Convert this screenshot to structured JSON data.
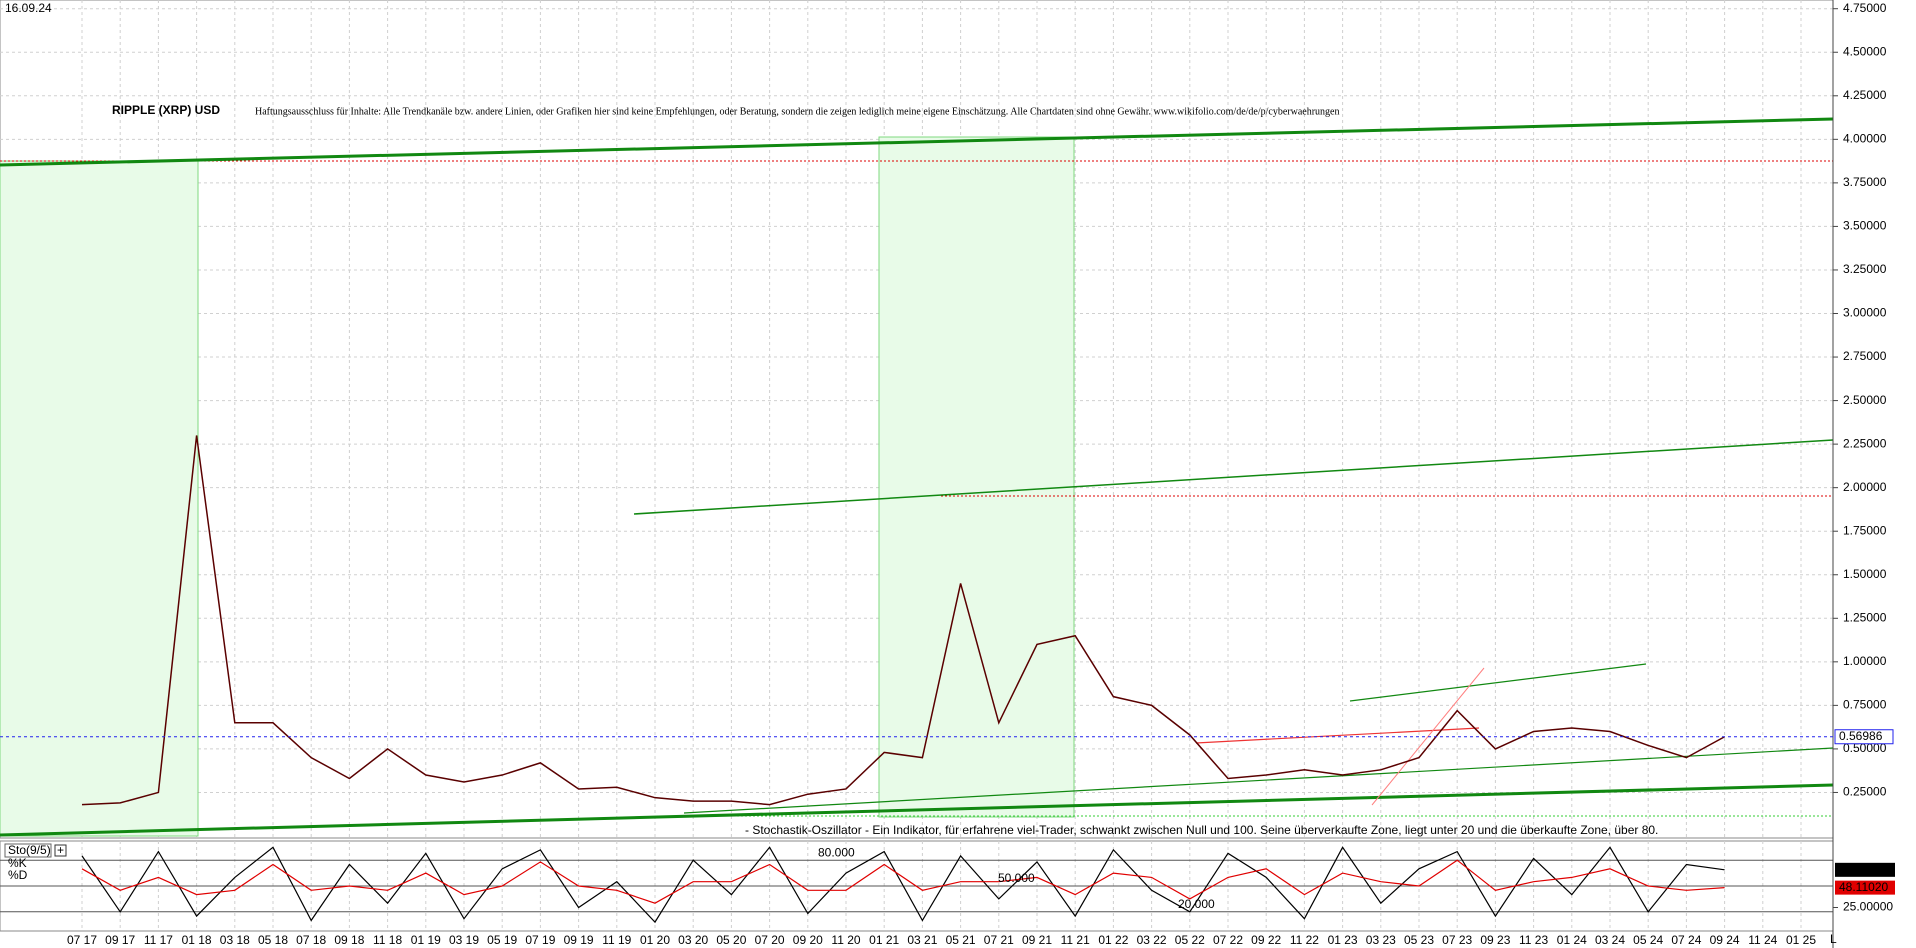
{
  "header": {
    "date": "16.09.24"
  },
  "chart_data": [
    {
      "type": "line",
      "title": "RIPPLE (XRP) USD",
      "subtitle": "Haftungsausschluss für Inhalte: Alle Trendkanäle bzw. andere Linien, oder Grafiken hier sind keine Empfehlungen, oder Beratung, sondern die zeigen lediglich meine eigene Einschätzung. Alle Chartdaten sind ohne Gewähr.  www.wikifolio.com/de/de/p/cyberwaehrungen",
      "annotation": "- Stochastik-Oszillator - Ein Indikator, für erfahrene viel-Trader, schwankt zwischen Null und 100. Seine überverkaufte Zone, liegt unter 20 und die überkaufte Zone, über 80.",
      "xlabel": "L",
      "categories": [
        "07 17",
        "09 17",
        "11 17",
        "01 18",
        "03 18",
        "05 18",
        "07 18",
        "09 18",
        "11 18",
        "01 19",
        "03 19",
        "05 19",
        "07 19",
        "09 19",
        "11 19",
        "01 20",
        "03 20",
        "05 20",
        "07 20",
        "09 20",
        "11 20",
        "01 21",
        "03 21",
        "05 21",
        "07 21",
        "09 21",
        "11 21",
        "01 22",
        "03 22",
        "05 22",
        "07 22",
        "09 22",
        "11 22",
        "01 23",
        "03 23",
        "05 23",
        "07 23",
        "09 23",
        "11 23",
        "01 24",
        "03 24",
        "05 24",
        "07 24",
        "09 24",
        "11 24",
        "01 25"
      ],
      "values": [
        0.18,
        0.19,
        0.25,
        2.3,
        0.65,
        0.65,
        0.45,
        0.33,
        0.5,
        0.35,
        0.31,
        0.35,
        0.42,
        0.27,
        0.28,
        0.22,
        0.2,
        0.2,
        0.18,
        0.24,
        0.27,
        0.48,
        0.45,
        1.45,
        0.65,
        1.1,
        1.15,
        0.8,
        0.75,
        0.58,
        0.33,
        0.35,
        0.38,
        0.35,
        0.38,
        0.45,
        0.72,
        0.5,
        0.6,
        0.62,
        0.6,
        0.52,
        0.45,
        0.57,
        null,
        null
      ],
      "color": "#5a0000",
      "current_value": 0.56986,
      "ylim": [
        0,
        4.8
      ],
      "yticks": [
        {
          "value": 0.25,
          "label": "0.25000"
        },
        {
          "value": 0.5,
          "label": "0.50000"
        },
        {
          "value": 0.75,
          "label": "0.75000"
        },
        {
          "value": 1,
          "label": "1.00000"
        },
        {
          "value": 1.25,
          "label": "1.25000"
        },
        {
          "value": 1.5,
          "label": "1.50000"
        },
        {
          "value": 1.75,
          "label": "1.75000"
        },
        {
          "value": 2,
          "label": "2.00000"
        },
        {
          "value": 2.25,
          "label": "2.25000"
        },
        {
          "value": 2.5,
          "label": "2.50000"
        },
        {
          "value": 2.75,
          "label": "2.75000"
        },
        {
          "value": 3,
          "label": "3.00000"
        },
        {
          "value": 3.25,
          "label": "3.25000"
        },
        {
          "value": 3.5,
          "label": "3.50000"
        },
        {
          "value": 3.75,
          "label": "3.75000"
        },
        {
          "value": 4,
          "label": "4.00000"
        },
        {
          "value": 4.25,
          "label": "4.25000"
        },
        {
          "value": 4.5,
          "label": "4.50000"
        },
        {
          "value": 4.75,
          "label": "4.75000"
        }
      ],
      "grid": true
    },
    {
      "type": "line",
      "title": "Sto(9/5)",
      "series": [
        {
          "name": "%K",
          "color": "#000000",
          "values": [
            85,
            20,
            90,
            15,
            60,
            95,
            10,
            75,
            30,
            88,
            12,
            70,
            92,
            25,
            55,
            8,
            80,
            40,
            95,
            18,
            65,
            90,
            10,
            85,
            35,
            78,
            15,
            92,
            45,
            20,
            88,
            60,
            12,
            95,
            30,
            70,
            90,
            15,
            82,
            40,
            95,
            20,
            75,
            68.80667,
            null,
            null
          ],
          "value_labels": [
            null,
            null,
            null,
            null,
            null,
            null,
            null,
            null,
            null,
            null,
            null,
            null,
            null,
            null,
            null,
            null,
            null,
            null,
            null,
            null,
            null,
            null,
            null,
            null,
            null,
            null,
            null,
            null,
            null,
            null,
            null,
            null,
            null,
            null,
            null,
            null,
            null,
            null,
            null,
            null,
            null,
            null,
            null,
            "68.80667",
            null,
            null
          ]
        },
        {
          "name": "%D",
          "color": "#e00000",
          "values": [
            70,
            45,
            60,
            40,
            45,
            75,
            45,
            50,
            45,
            65,
            40,
            50,
            78,
            50,
            45,
            30,
            55,
            55,
            75,
            45,
            45,
            75,
            45,
            55,
            55,
            60,
            40,
            65,
            60,
            35,
            60,
            70,
            40,
            65,
            55,
            50,
            80,
            45,
            55,
            60,
            70,
            50,
            45,
            48.1102,
            null,
            null
          ],
          "value_labels": [
            null,
            null,
            null,
            null,
            null,
            null,
            null,
            null,
            null,
            null,
            null,
            null,
            null,
            null,
            null,
            null,
            null,
            null,
            null,
            null,
            null,
            null,
            null,
            null,
            null,
            null,
            null,
            null,
            null,
            null,
            null,
            null,
            null,
            null,
            null,
            null,
            null,
            null,
            null,
            null,
            null,
            null,
            null,
            "48.11020",
            null,
            null
          ]
        }
      ],
      "ylim": [
        0,
        100
      ],
      "yticks": [
        {
          "value": 80,
          "label": "80.000"
        },
        {
          "value": 50,
          "label": "50.000"
        },
        {
          "value": 20,
          "label": "20.000"
        }
      ],
      "y2lim": [
        0,
        100
      ],
      "y2ticks": [
        {
          "value": 25,
          "label": "25.00000"
        }
      ]
    }
  ]
}
